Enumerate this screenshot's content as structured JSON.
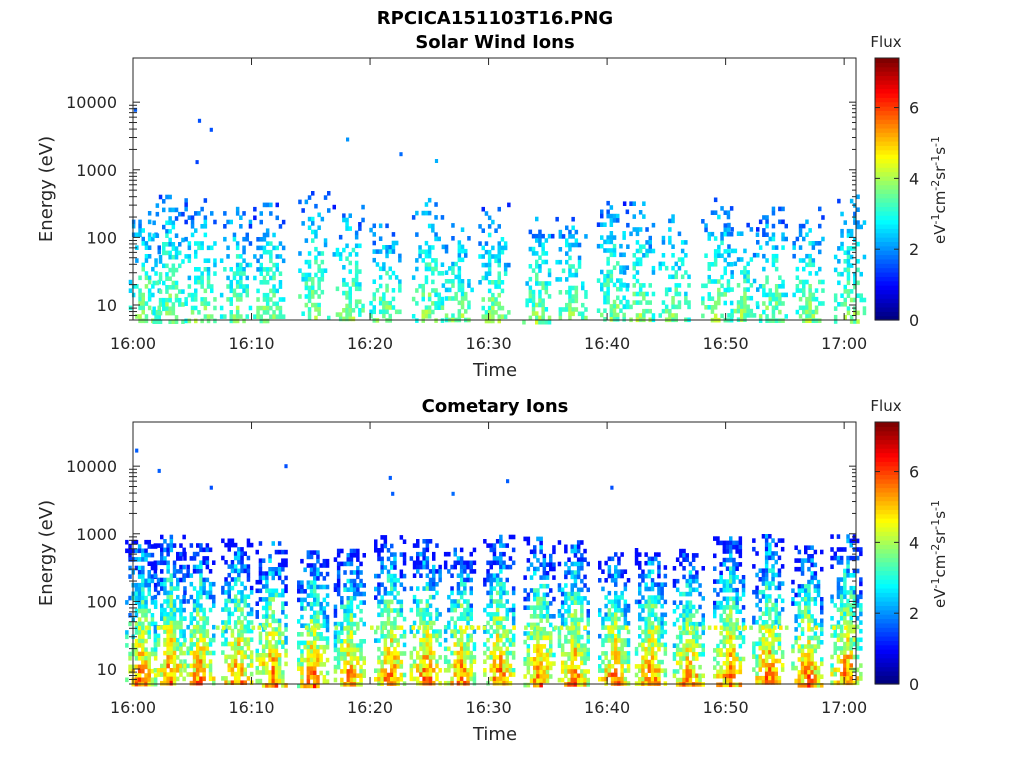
{
  "figure_title": "RPCICA151103T16.PNG",
  "colors": {
    "colormap": "jet",
    "axis": "#262626",
    "background": "#ffffff"
  },
  "chart_data": [
    {
      "type": "heatmap",
      "title": "Solar Wind Ions",
      "xlabel": "Time",
      "ylabel": "Energy (eV)",
      "x_ticks": [
        "16:00",
        "16:10",
        "16:20",
        "16:30",
        "16:40",
        "16:50",
        "17:00"
      ],
      "x_range_minutes": [
        0,
        61
      ],
      "y_scale": "log",
      "y_ticks": [
        "10",
        "100",
        "1000",
        "10000"
      ],
      "y_range": [
        6,
        45000
      ],
      "colorbar": {
        "title": "Flux",
        "label_base": "eV",
        "label_sup1": "-1",
        "label_mid1": "cm",
        "label_sup2": "-2",
        "label_mid2": "sr",
        "label_sup3": "-1",
        "label_mid3": "s",
        "label_sup4": "-1",
        "ticks": [
          "0",
          "2",
          "4",
          "6"
        ],
        "range": [
          0,
          7.4
        ]
      },
      "intensity": "low",
      "bursts_minute": [
        0.9,
        2.9,
        5.6,
        8.6,
        11.4,
        15.2,
        18.1,
        21.2,
        24.8,
        27.3,
        30.4,
        34.1,
        36.9,
        40.4,
        42.6,
        45.6,
        49.2,
        51.4,
        53.8,
        56.9,
        60.4
      ],
      "scattered_points": [
        {
          "minute": 5.6,
          "energy_eV": 5300,
          "flux": 1.5
        },
        {
          "minute": 6.6,
          "energy_eV": 3900,
          "flux": 1.5
        },
        {
          "minute": 18.1,
          "energy_eV": 2800,
          "flux": 2.0
        },
        {
          "minute": 22.6,
          "energy_eV": 1700,
          "flux": 1.7
        },
        {
          "minute": 25.6,
          "energy_eV": 1350,
          "flux": 2.2
        },
        {
          "minute": 5.4,
          "energy_eV": 1300,
          "flux": 1.4
        },
        {
          "minute": 0.2,
          "energy_eV": 7700,
          "flux": 1.6
        }
      ]
    },
    {
      "type": "heatmap",
      "title": "Cometary Ions",
      "xlabel": "Time",
      "ylabel": "Energy (eV)",
      "x_ticks": [
        "16:00",
        "16:10",
        "16:20",
        "16:30",
        "16:40",
        "16:50",
        "17:00"
      ],
      "x_range_minutes": [
        0,
        61
      ],
      "y_scale": "log",
      "y_ticks": [
        "10",
        "100",
        "1000",
        "10000"
      ],
      "y_range": [
        6,
        45000
      ],
      "colorbar": {
        "title": "Flux",
        "label_base": "eV",
        "label_sup1": "-1",
        "label_mid1": "cm",
        "label_sup2": "-2",
        "label_mid2": "sr",
        "label_sup3": "-1",
        "label_mid3": "s",
        "label_sup4": "-1",
        "ticks": [
          "0",
          "2",
          "4",
          "6"
        ],
        "range": [
          0,
          7.4
        ]
      },
      "intensity": "high",
      "bursts_minute": [
        0.6,
        3.0,
        5.5,
        8.7,
        11.6,
        15.1,
        18.2,
        21.6,
        24.6,
        27.5,
        30.8,
        34.2,
        37.1,
        40.5,
        43.6,
        46.8,
        50.2,
        53.5,
        56.8,
        60.1
      ],
      "scattered_points": [
        {
          "minute": 0.3,
          "energy_eV": 17000,
          "flux": 1.6
        },
        {
          "minute": 2.2,
          "energy_eV": 8500,
          "flux": 1.6
        },
        {
          "minute": 12.9,
          "energy_eV": 10000,
          "flux": 1.5
        },
        {
          "minute": 6.6,
          "energy_eV": 4800,
          "flux": 1.5
        },
        {
          "minute": 21.7,
          "energy_eV": 6700,
          "flux": 1.6
        },
        {
          "minute": 31.6,
          "energy_eV": 6000,
          "flux": 1.6
        },
        {
          "minute": 40.4,
          "energy_eV": 4800,
          "flux": 1.5
        },
        {
          "minute": 27.0,
          "energy_eV": 3900,
          "flux": 1.7
        },
        {
          "minute": 21.9,
          "energy_eV": 3900,
          "flux": 1.6
        }
      ]
    }
  ]
}
